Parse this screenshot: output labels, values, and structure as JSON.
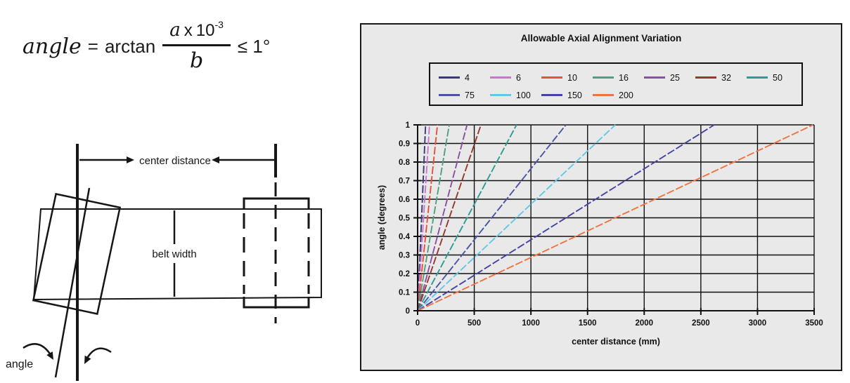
{
  "formula": {
    "lhs": "angle",
    "equals": "=",
    "function": "arctan",
    "numerator_var": "a",
    "numerator_times": "x",
    "numerator_base": "10",
    "numerator_exponent": "-3",
    "denominator_var": "b",
    "constraint": "≤ 1°"
  },
  "diagram": {
    "center_distance_label": "center distance",
    "belt_width_label": "belt width",
    "angle_label": "angle"
  },
  "chart_data": {
    "type": "line",
    "title": "Allowable Axial Alignment Variation",
    "xlabel": "center distance (mm)",
    "ylabel": "angle (degrees)",
    "xlim": [
      0,
      3500
    ],
    "ylim": [
      0,
      1
    ],
    "x_ticks": [
      "0",
      "500",
      "1000",
      "1500",
      "2000",
      "2500",
      "3000",
      "3500"
    ],
    "y_ticks": [
      "0",
      "0.1",
      "0.2",
      "0.3",
      "0.4",
      "0.5",
      "0.6",
      "0.7",
      "0.8",
      "0.9",
      "1"
    ],
    "grid": true,
    "legend_position": "top",
    "background": "#E9E9E9",
    "axis_color": "#111111",
    "series": [
      {
        "name": "4",
        "color": "#3A3A78",
        "points": [
          [
            0,
            0
          ],
          [
            70,
            1
          ]
        ]
      },
      {
        "name": "6",
        "color": "#C878C8",
        "points": [
          [
            0,
            0
          ],
          [
            105,
            1
          ]
        ]
      },
      {
        "name": "10",
        "color": "#E6503C",
        "points": [
          [
            0,
            0
          ],
          [
            175,
            1
          ]
        ]
      },
      {
        "name": "16",
        "color": "#50A080",
        "points": [
          [
            0,
            0
          ],
          [
            279,
            1
          ]
        ]
      },
      {
        "name": "25",
        "color": "#8A50A0",
        "points": [
          [
            0,
            0
          ],
          [
            436,
            1
          ]
        ]
      },
      {
        "name": "32",
        "color": "#96382E",
        "points": [
          [
            0,
            0
          ],
          [
            559,
            1
          ]
        ]
      },
      {
        "name": "50",
        "color": "#2E9C96",
        "points": [
          [
            0,
            0
          ],
          [
            873,
            1
          ]
        ]
      },
      {
        "name": "75",
        "color": "#4A55A8",
        "points": [
          [
            0,
            0
          ],
          [
            1309,
            1
          ]
        ]
      },
      {
        "name": "100",
        "color": "#62C8E8",
        "points": [
          [
            0,
            0
          ],
          [
            1745,
            1
          ]
        ]
      },
      {
        "name": "150",
        "color": "#4444A4",
        "points": [
          [
            0,
            0
          ],
          [
            2618,
            1
          ]
        ]
      },
      {
        "name": "200",
        "color": "#EE7442",
        "points": [
          [
            0,
            0
          ],
          [
            3491,
            1
          ]
        ]
      }
    ]
  }
}
